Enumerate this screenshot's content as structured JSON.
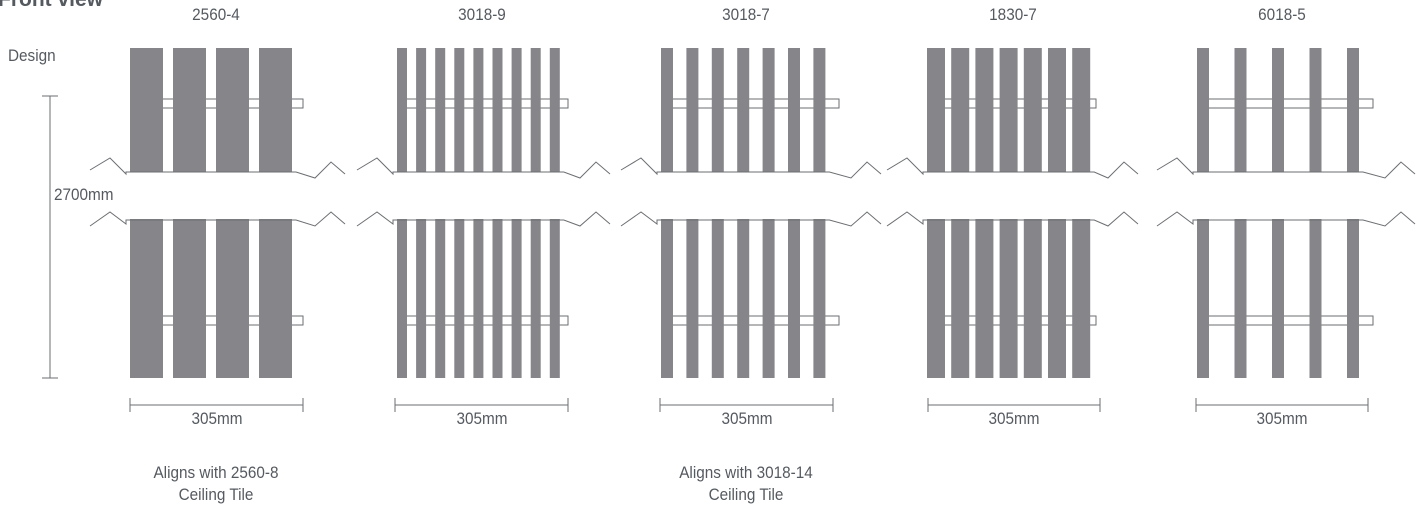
{
  "view_title": "Front view",
  "row_label": "Design",
  "height_label": "2700mm",
  "colors": {
    "blade": "#86868a",
    "line": "#6b6e72",
    "text": "#555a60"
  },
  "designs": [
    {
      "code": "2560-4",
      "blades": 4,
      "width_label": "305mm"
    },
    {
      "code": "3018-9",
      "blades": 9,
      "width_label": "305mm"
    },
    {
      "code": "3018-7",
      "blades": 7,
      "width_label": "305mm"
    },
    {
      "code": "1830-7",
      "blades": 7,
      "width_label": "305mm"
    },
    {
      "code": "6018-5",
      "blades": 5,
      "width_label": "305mm"
    }
  ],
  "notes": [
    {
      "line1": "Aligns with 2560-8",
      "line2": "Ceiling Tile"
    },
    {
      "line1": "Aligns with 3018-14",
      "line2": "Ceiling Tile"
    }
  ]
}
